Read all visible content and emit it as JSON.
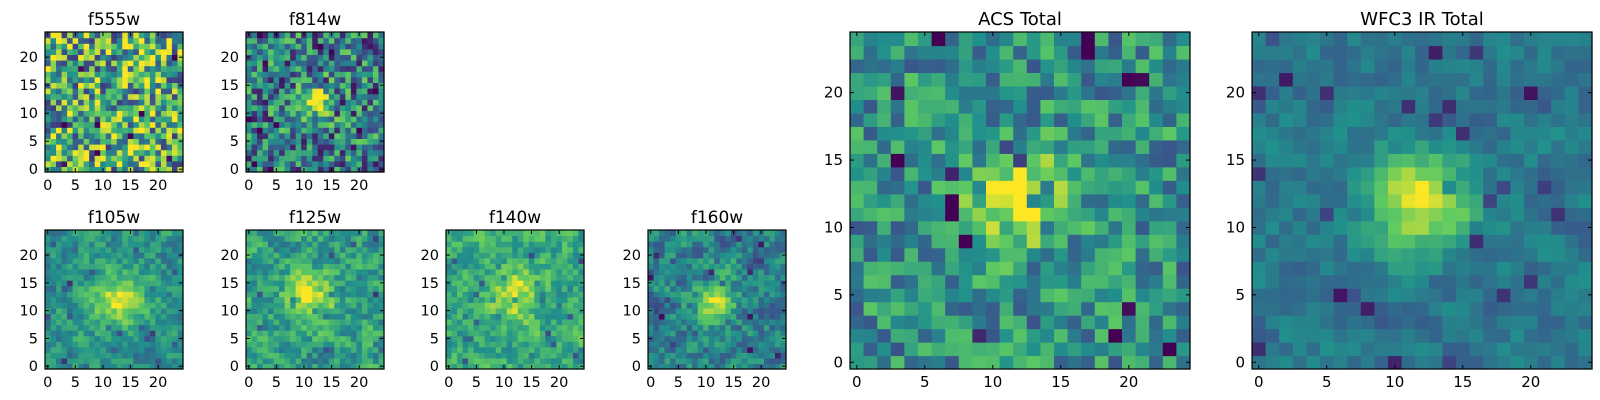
{
  "figure": {
    "description_seed": 7,
    "colormap": "viridis",
    "colormap_stops": [
      "#440154",
      "#3b528b",
      "#21918c",
      "#5ec962",
      "#fde725"
    ]
  },
  "chart_data": [
    {
      "type": "heatmap",
      "title": "f555w",
      "grid": 25,
      "xticks": [
        "0",
        "5",
        "10",
        "15",
        "20"
      ],
      "yticks": [
        "0",
        "5",
        "10",
        "15",
        "20"
      ],
      "xlim": [
        0,
        25
      ],
      "ylim": [
        0,
        25
      ],
      "source_center": null,
      "noise": 0.55,
      "bias": 0.62,
      "smooth": 0
    },
    {
      "type": "heatmap",
      "title": "f814w",
      "grid": 25,
      "xticks": [
        "0",
        "5",
        "10",
        "15",
        "20"
      ],
      "yticks": [
        "0",
        "5",
        "10",
        "15",
        "20"
      ],
      "xlim": [
        0,
        25
      ],
      "ylim": [
        0,
        25
      ],
      "source_center": [
        12,
        12
      ],
      "source_sigma": 2.0,
      "source_amp": 0.55,
      "noise": 0.45,
      "bias": 0.42,
      "smooth": 0
    },
    {
      "type": "heatmap",
      "title": "f105w",
      "grid": 25,
      "xticks": [
        "0",
        "5",
        "10",
        "15",
        "20"
      ],
      "yticks": [
        "0",
        "5",
        "10",
        "15",
        "20"
      ],
      "xlim": [
        0,
        25
      ],
      "ylim": [
        0,
        25
      ],
      "source_center": [
        13,
        12
      ],
      "source_sigma": 3.2,
      "source_amp": 0.5,
      "noise": 0.3,
      "bias": 0.5,
      "smooth": 1
    },
    {
      "type": "heatmap",
      "title": "f125w",
      "grid": 25,
      "xticks": [
        "0",
        "5",
        "10",
        "15",
        "20"
      ],
      "yticks": [
        "0",
        "5",
        "10",
        "15",
        "20"
      ],
      "xlim": [
        0,
        25
      ],
      "ylim": [
        0,
        25
      ],
      "source_center": [
        11,
        12
      ],
      "source_sigma": 3.0,
      "source_amp": 0.4,
      "noise": 0.38,
      "bias": 0.55,
      "smooth": 1
    },
    {
      "type": "heatmap",
      "title": "f140w",
      "grid": 25,
      "xticks": [
        "0",
        "5",
        "10",
        "15",
        "20"
      ],
      "yticks": [
        "0",
        "5",
        "10",
        "15",
        "20"
      ],
      "xlim": [
        0,
        25
      ],
      "ylim": [
        0,
        25
      ],
      "source_center": [
        12,
        13
      ],
      "source_sigma": 3.0,
      "source_amp": 0.35,
      "noise": 0.32,
      "bias": 0.62,
      "smooth": 1
    },
    {
      "type": "heatmap",
      "title": "f160w",
      "grid": 25,
      "xticks": [
        "0",
        "5",
        "10",
        "15",
        "20"
      ],
      "yticks": [
        "0",
        "5",
        "10",
        "15",
        "20"
      ],
      "xlim": [
        0,
        25
      ],
      "ylim": [
        0,
        25
      ],
      "source_center": [
        12,
        12
      ],
      "source_sigma": 2.2,
      "source_amp": 0.55,
      "noise": 0.38,
      "bias": 0.45,
      "smooth": 1
    },
    {
      "type": "heatmap",
      "title": "ACS Total",
      "grid": 25,
      "xticks": [
        "0",
        "5",
        "10",
        "15",
        "20"
      ],
      "yticks": [
        "0",
        "5",
        "10",
        "15",
        "20"
      ],
      "xlim": [
        0,
        25
      ],
      "ylim": [
        0,
        25
      ],
      "source_center": [
        12,
        12
      ],
      "source_sigma": 2.2,
      "source_amp": 0.6,
      "noise": 0.3,
      "bias": 0.5,
      "smooth": 0
    },
    {
      "type": "heatmap",
      "title": "WFC3 IR Total",
      "grid": 25,
      "xticks": [
        "0",
        "5",
        "10",
        "15",
        "20"
      ],
      "yticks": [
        "0",
        "5",
        "10",
        "15",
        "20"
      ],
      "xlim": [
        0,
        25
      ],
      "ylim": [
        0,
        25
      ],
      "source_center": [
        12,
        12
      ],
      "source_sigma": 2.5,
      "source_amp": 0.6,
      "noise": 0.2,
      "bias": 0.4,
      "smooth": 1
    }
  ]
}
